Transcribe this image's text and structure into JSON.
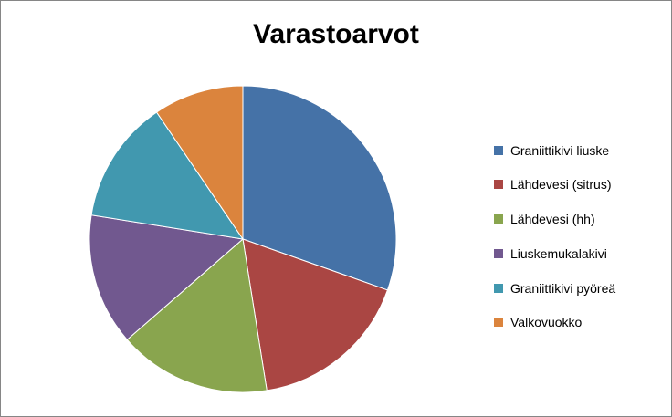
{
  "chart_data": {
    "type": "pie",
    "title": "Varastoarvot",
    "legend_position": "right",
    "slices": [
      {
        "label": "Graniittikivi liuske",
        "value": 30.4,
        "color": "#4572A7"
      },
      {
        "label": "Lähdevesi (sitrus)",
        "value": 17.1,
        "color": "#AA4643"
      },
      {
        "label": "Lähdevesi (hh)",
        "value": 16.1,
        "color": "#89A54E"
      },
      {
        "label": "Liuskemukalakivi",
        "value": 13.9,
        "color": "#71588F"
      },
      {
        "label": "Graniittikivi pyöreä",
        "value": 13.0,
        "color": "#4198AF"
      },
      {
        "label": "Valkovuokko",
        "value": 9.5,
        "color": "#DB843D"
      }
    ]
  }
}
